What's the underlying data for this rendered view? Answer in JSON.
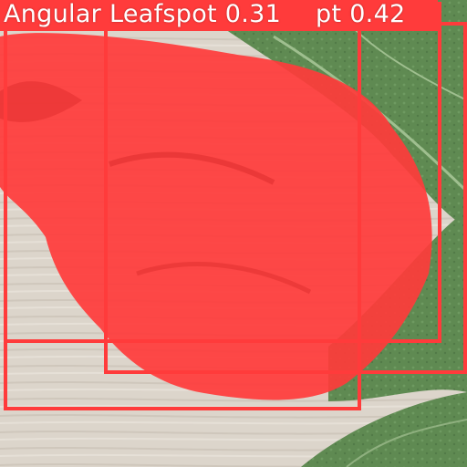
{
  "detections": [
    {
      "label_text": "Angular Leafspot 0.31"
    },
    {
      "label_text": "pt 0.42"
    },
    {
      "label_text": ""
    }
  ],
  "colors": {
    "box": "#ff3b3b",
    "mask": "#ff3b3b",
    "leaf": "#5f8a52",
    "leaf_vein": "#8fb07f",
    "background_wood": "#d9d2c8"
  }
}
